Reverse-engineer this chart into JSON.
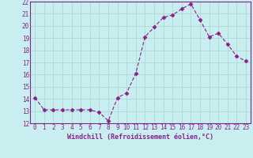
{
  "x": [
    0,
    1,
    2,
    3,
    4,
    5,
    6,
    7,
    8,
    9,
    10,
    11,
    12,
    13,
    14,
    15,
    16,
    17,
    18,
    19,
    20,
    21,
    22,
    23
  ],
  "y": [
    14.1,
    13.1,
    13.1,
    13.1,
    13.1,
    13.1,
    13.1,
    12.9,
    12.2,
    14.1,
    14.5,
    16.1,
    19.1,
    19.9,
    20.7,
    20.9,
    21.4,
    21.8,
    20.5,
    19.1,
    19.4,
    18.5,
    17.5,
    17.1
  ],
  "line_color": "#882288",
  "marker": "D",
  "marker_size": 2.5,
  "bg_color": "#c8eef0",
  "grid_color": "#b0d8da",
  "xlabel": "Windchill (Refroidissement éolien,°C)",
  "xlabel_color": "#882288",
  "tick_color": "#882288",
  "axis_color": "#882288",
  "ylim": [
    12,
    22
  ],
  "xlim": [
    -0.5,
    23.5
  ],
  "yticks": [
    12,
    13,
    14,
    15,
    16,
    17,
    18,
    19,
    20,
    21,
    22
  ],
  "xticks": [
    0,
    1,
    2,
    3,
    4,
    5,
    6,
    7,
    8,
    9,
    10,
    11,
    12,
    13,
    14,
    15,
    16,
    17,
    18,
    19,
    20,
    21,
    22,
    23
  ],
  "tick_fontsize": 5.5,
  "xlabel_fontsize": 6.0
}
